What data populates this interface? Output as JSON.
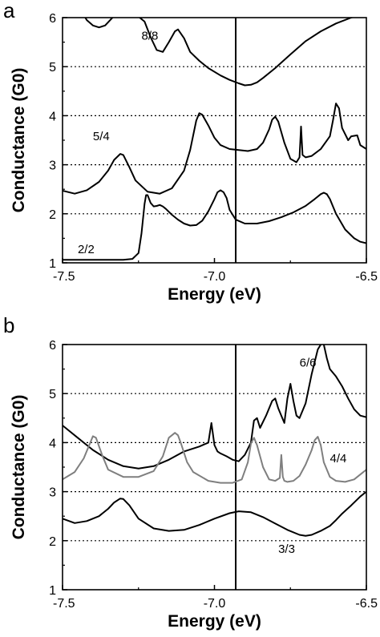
{
  "chart_data": [
    {
      "panel_label": "a",
      "type": "line",
      "title": "",
      "xlabel": "Energy (eV)",
      "ylabel": "Conductance (G0)",
      "xlim": [
        -7.5,
        -6.5
      ],
      "ylim": [
        1,
        6
      ],
      "xticks": [
        -7.5,
        -7.0,
        -6.5
      ],
      "xtick_labels": [
        "-7.5",
        "-7.0",
        "-6.5"
      ],
      "yticks": [
        1,
        2,
        3,
        4,
        5,
        6
      ],
      "ytick_labels": [
        "1",
        "2",
        "3",
        "4",
        "5",
        "6"
      ],
      "grid": "dotted horizontal lines at y = 2, 3, 4, 5",
      "vline_x": -6.93,
      "series": [
        {
          "label": "8/8",
          "color": "#000000",
          "x": [
            -7.43,
            -7.42,
            -7.4,
            -7.38,
            -7.36,
            -7.34,
            -7.32,
            -7.3,
            -7.27,
            -7.25,
            -7.23,
            -7.21,
            -7.19,
            -7.17,
            -7.15,
            -7.13,
            -7.12,
            -7.1,
            -7.08,
            -7.05,
            -7.02,
            -6.98,
            -6.95,
            -6.92,
            -6.9,
            -6.88,
            -6.86,
            -6.84,
            -6.8,
            -6.75,
            -6.7,
            -6.65,
            -6.6,
            -6.55,
            -6.52,
            -6.49
          ],
          "y": [
            6.05,
            5.95,
            5.84,
            5.8,
            5.84,
            5.97,
            6.1,
            6.1,
            6.05,
            6.02,
            5.92,
            5.6,
            5.34,
            5.3,
            5.5,
            5.72,
            5.76,
            5.58,
            5.3,
            5.12,
            4.97,
            4.82,
            4.73,
            4.66,
            4.62,
            4.63,
            4.68,
            4.77,
            4.97,
            5.25,
            5.52,
            5.72,
            5.88,
            6.0,
            6.05,
            6.1
          ]
        },
        {
          "label": "5/4",
          "color": "#000000",
          "x": [
            -7.5,
            -7.46,
            -7.42,
            -7.38,
            -7.35,
            -7.33,
            -7.31,
            -7.3,
            -7.28,
            -7.26,
            -7.22,
            -7.18,
            -7.14,
            -7.1,
            -7.08,
            -7.06,
            -7.05,
            -7.04,
            -7.02,
            -7.0,
            -6.98,
            -6.95,
            -6.92,
            -6.89,
            -6.86,
            -6.84,
            -6.82,
            -6.81,
            -6.8,
            -6.79,
            -6.77,
            -6.75,
            -6.73,
            -6.72,
            -6.715,
            -6.71,
            -6.7,
            -6.68,
            -6.65,
            -6.62,
            -6.61,
            -6.6,
            -6.59,
            -6.58,
            -6.56,
            -6.55,
            -6.53,
            -6.52,
            -6.5
          ],
          "y": [
            2.47,
            2.41,
            2.48,
            2.65,
            2.88,
            3.1,
            3.22,
            3.2,
            2.95,
            2.68,
            2.45,
            2.41,
            2.52,
            2.88,
            3.3,
            3.9,
            4.05,
            4.02,
            3.8,
            3.55,
            3.4,
            3.32,
            3.3,
            3.28,
            3.32,
            3.45,
            3.72,
            3.92,
            3.98,
            3.88,
            3.45,
            3.12,
            3.05,
            3.15,
            3.78,
            3.2,
            3.15,
            3.18,
            3.32,
            3.58,
            3.9,
            4.25,
            4.15,
            3.75,
            3.5,
            3.58,
            3.6,
            3.4,
            3.32
          ]
        },
        {
          "label": "2/2",
          "color": "#000000",
          "x": [
            -7.5,
            -7.4,
            -7.3,
            -7.27,
            -7.25,
            -7.24,
            -7.23,
            -7.225,
            -7.22,
            -7.21,
            -7.2,
            -7.19,
            -7.18,
            -7.17,
            -7.16,
            -7.14,
            -7.12,
            -7.1,
            -7.08,
            -7.06,
            -7.04,
            -7.02,
            -7.0,
            -6.99,
            -6.98,
            -6.97,
            -6.96,
            -6.95,
            -6.93,
            -6.9,
            -6.86,
            -6.82,
            -6.78,
            -6.74,
            -6.7,
            -6.67,
            -6.65,
            -6.64,
            -6.63,
            -6.62,
            -6.6,
            -6.57,
            -6.54,
            -6.52,
            -6.5
          ],
          "y": [
            1.06,
            1.06,
            1.06,
            1.08,
            1.2,
            1.6,
            2.2,
            2.38,
            2.38,
            2.22,
            2.15,
            2.16,
            2.18,
            2.15,
            2.1,
            1.98,
            1.88,
            1.8,
            1.76,
            1.77,
            1.86,
            2.05,
            2.3,
            2.44,
            2.48,
            2.44,
            2.32,
            2.08,
            1.88,
            1.8,
            1.8,
            1.85,
            1.93,
            2.03,
            2.16,
            2.3,
            2.4,
            2.43,
            2.4,
            2.3,
            2.0,
            1.68,
            1.5,
            1.43,
            1.4
          ]
        }
      ],
      "annotations": [
        {
          "text": "8/8",
          "x": -7.24,
          "y": 5.55
        },
        {
          "text": "5/4",
          "x": -7.4,
          "y": 3.5
        },
        {
          "text": "2/2",
          "x": -7.45,
          "y": 1.2
        }
      ]
    },
    {
      "panel_label": "b",
      "type": "line",
      "title": "",
      "xlabel": "Energy (eV)",
      "ylabel": "Conductance (G0)",
      "xlim": [
        -7.5,
        -6.5
      ],
      "ylim": [
        1,
        6
      ],
      "xticks": [
        -7.5,
        -7.0,
        -6.5
      ],
      "xtick_labels": [
        "-7.5",
        "-7.0",
        "-6.5"
      ],
      "yticks": [
        1,
        2,
        3,
        4,
        5,
        6
      ],
      "ytick_labels": [
        "1",
        "2",
        "3",
        "4",
        "5",
        "6"
      ],
      "grid": "dotted horizontal lines at y = 2, 3, 4, 5",
      "vline_x": -6.93,
      "series": [
        {
          "label": "6/6",
          "color": "#000000",
          "x": [
            -7.5,
            -7.45,
            -7.4,
            -7.35,
            -7.3,
            -7.25,
            -7.2,
            -7.15,
            -7.1,
            -7.05,
            -7.02,
            -7.01,
            -7.0,
            -6.99,
            -6.98,
            -6.96,
            -6.94,
            -6.92,
            -6.9,
            -6.88,
            -6.87,
            -6.86,
            -6.85,
            -6.83,
            -6.81,
            -6.8,
            -6.79,
            -6.77,
            -6.76,
            -6.75,
            -6.74,
            -6.73,
            -6.72,
            -6.7,
            -6.68,
            -6.66,
            -6.645,
            -6.64,
            -6.63,
            -6.62,
            -6.6,
            -6.58,
            -6.56,
            -6.54,
            -6.52,
            -6.5
          ],
          "y": [
            4.35,
            4.1,
            3.85,
            3.65,
            3.52,
            3.47,
            3.52,
            3.65,
            3.82,
            3.92,
            4.0,
            4.4,
            3.95,
            3.82,
            3.78,
            3.72,
            3.65,
            3.62,
            3.75,
            4.0,
            4.45,
            4.5,
            4.3,
            4.55,
            4.85,
            4.9,
            4.7,
            4.4,
            4.9,
            5.2,
            4.85,
            4.55,
            4.5,
            4.8,
            5.4,
            5.9,
            6.05,
            6.0,
            5.72,
            5.5,
            5.35,
            5.15,
            4.9,
            4.68,
            4.55,
            4.52
          ]
        },
        {
          "label": "4/4",
          "color": "#7f7f7f",
          "x": [
            -7.5,
            -7.46,
            -7.43,
            -7.41,
            -7.4,
            -7.39,
            -7.37,
            -7.35,
            -7.3,
            -7.25,
            -7.2,
            -7.17,
            -7.15,
            -7.13,
            -7.12,
            -7.11,
            -7.09,
            -7.07,
            -7.02,
            -6.98,
            -6.94,
            -6.91,
            -6.89,
            -6.88,
            -6.87,
            -6.86,
            -6.84,
            -6.82,
            -6.8,
            -6.785,
            -6.78,
            -6.775,
            -6.77,
            -6.76,
            -6.74,
            -6.72,
            -6.7,
            -6.68,
            -6.67,
            -6.66,
            -6.65,
            -6.64,
            -6.62,
            -6.6,
            -6.57,
            -6.54,
            -6.52,
            -6.5
          ],
          "y": [
            3.25,
            3.4,
            3.68,
            3.98,
            4.13,
            4.1,
            3.75,
            3.45,
            3.3,
            3.3,
            3.42,
            3.72,
            4.1,
            4.2,
            4.15,
            3.98,
            3.6,
            3.4,
            3.22,
            3.18,
            3.18,
            3.25,
            3.6,
            3.98,
            4.1,
            3.95,
            3.5,
            3.25,
            3.22,
            3.28,
            3.75,
            3.3,
            3.22,
            3.2,
            3.22,
            3.32,
            3.55,
            3.85,
            4.05,
            4.12,
            3.95,
            3.6,
            3.3,
            3.22,
            3.2,
            3.25,
            3.35,
            3.45
          ]
        },
        {
          "label": "3/3",
          "color": "#000000",
          "x": [
            -7.5,
            -7.46,
            -7.42,
            -7.38,
            -7.35,
            -7.33,
            -7.31,
            -7.3,
            -7.28,
            -7.25,
            -7.2,
            -7.15,
            -7.1,
            -7.05,
            -7.0,
            -6.95,
            -6.92,
            -6.88,
            -6.84,
            -6.8,
            -6.76,
            -6.72,
            -6.7,
            -6.68,
            -6.65,
            -6.62,
            -6.6,
            -6.58,
            -6.55,
            -6.52,
            -6.5
          ],
          "y": [
            2.45,
            2.36,
            2.4,
            2.5,
            2.65,
            2.78,
            2.86,
            2.85,
            2.72,
            2.45,
            2.25,
            2.2,
            2.22,
            2.32,
            2.45,
            2.56,
            2.6,
            2.58,
            2.48,
            2.35,
            2.22,
            2.12,
            2.1,
            2.12,
            2.2,
            2.3,
            2.42,
            2.55,
            2.72,
            2.9,
            3.0
          ]
        }
      ],
      "annotations": [
        {
          "text": "6/6",
          "x": -6.72,
          "y": 5.55
        },
        {
          "text": "4/4",
          "x": -6.62,
          "y": 3.6
        },
        {
          "text": "3/3",
          "x": -6.79,
          "y": 1.75
        }
      ]
    }
  ]
}
